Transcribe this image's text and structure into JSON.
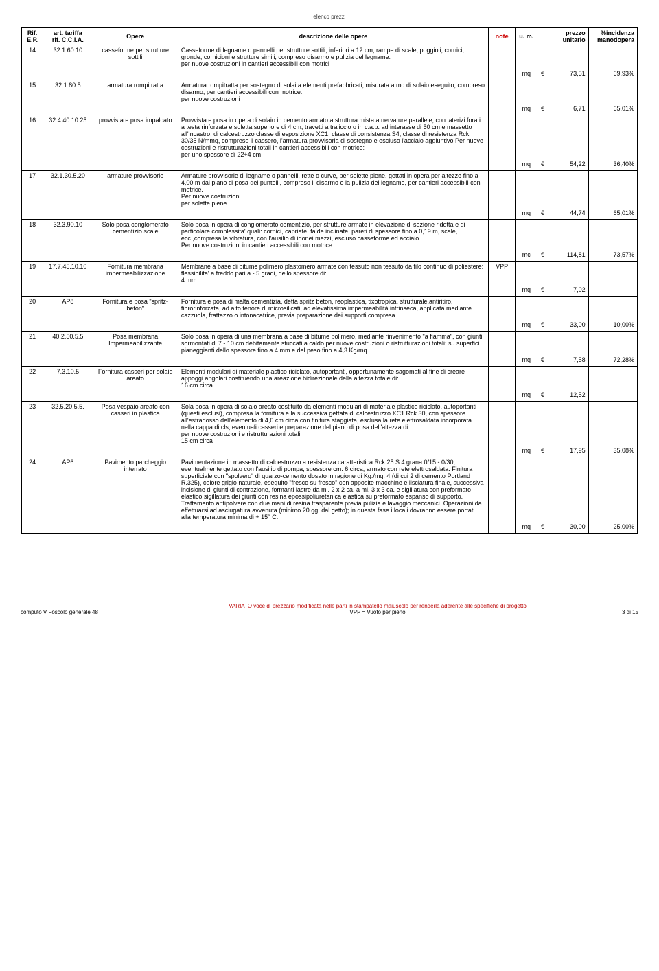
{
  "document_title": "elenco prezzi",
  "headers": {
    "rif": "Rif.\nE.P.",
    "art": "art. tariffa\nrif. C.C.I.A.",
    "opere": "Opere",
    "desc": "descrizione delle opere",
    "note": "note",
    "um": "u. m.",
    "prezzo": "prezzo\nunitario",
    "inc": "%incidenza\nmanodopera"
  },
  "rows": [
    {
      "rif": "14",
      "art": "32.1.60.10",
      "opere": "casseforme per strutture sottili",
      "desc": "Casseforme di legname o pannelli per strutture sottili, inferiori a 12 cm, rampe di scale, poggioli, cornici, gronde, cornicioni e strutture simili, compreso disarmo e pulizia del legname:\nper nuove costruzioni in cantieri accessibili con motrici",
      "note": "",
      "um": "mq",
      "eur": "€",
      "prezzo": "73,51",
      "inc": "69,93%"
    },
    {
      "rif": "15",
      "art": "32.1.80.5",
      "opere": "armatura rompitratta",
      "desc": "Armatura rompitratta per sostegno di solai a elementi prefabbricati, misurata a mq di solaio eseguito, compreso disarmo, per cantieri accessibili con motrice:\nper nuove costruzioni",
      "note": "",
      "um": "mq",
      "eur": "€",
      "prezzo": "6,71",
      "inc": "65,01%"
    },
    {
      "rif": "16",
      "art": "32.4.40.10.25",
      "opere": "provvista e posa impalcato",
      "desc": "Provvista e posa in opera di solaio in cemento armato a struttura mista a nervature parallele, con laterizi forati a testa rinforzata e soletta superiore di 4 cm, travetti a traliccio o in c.a.p. ad interasse di 50 cm e massetto all'incastro, di calcestruzzo classe di esposizione XC1, classe di consistenza S4, classe di resistenza Rck 30/35 N/mmq, compreso il cassero, l'armatura provvisoria di sostegno e escluso l'acciaio aggiuntivo Per nuove costruzioni e ristrutturazioni totali in cantieri accessibili con motrice:\nper uno spessore di 22+4 cm",
      "note": "",
      "um": "mq",
      "eur": "€",
      "prezzo": "54,22",
      "inc": "36,40%"
    },
    {
      "rif": "17",
      "art": "32.1.30.5.20",
      "opere": "armature provvisorie",
      "desc": "Armature provvisorie di legname o pannelli, rette o curve, per solette piene, gettati in opera per altezze fino a 4,00 m dal piano di posa dei puntelli, compreso il disarmo e la pulizia del legname, per cantieri accessibili con motrice.\nPer nuove costruzioni\nper solette piene",
      "note": "",
      "um": "mq",
      "eur": "€",
      "prezzo": "44,74",
      "inc": "65,01%"
    },
    {
      "rif": "18",
      "art": "32.3.90.10",
      "opere": "Solo posa conglomerato cementizio scale",
      "desc": "Solo posa in opera di conglomerato cementizio, per strutture armate in elevazione di sezione ridotta e di particolare complessita' quali: cornici, capriate, falde inclinate, pareti di spessore fino a 0,19 m, scale, ecc.,compresa la vibratura, con l'ausilio di idonei mezzi, escluso casseforme ed acciaio.\nPer nuove costruzioni in cantieri accessibili con motrice",
      "note": "",
      "um": "mc",
      "eur": "€",
      "prezzo": "114,81",
      "inc": "73,57%"
    },
    {
      "rif": "19",
      "art": "17.7.45.10.10",
      "opere": "Fornitura membrana impermeabilizzazione",
      "desc": "Membrane a base di bitume polimero plastomero armate con tessuto non tessuto da filo continuo di poliestere:\nflessibilita' a freddo pari a - 5 gradi, dello spessore di:\n4 mm",
      "note": "VPP",
      "um": "mq",
      "eur": "€",
      "prezzo": "7,02",
      "inc": ""
    },
    {
      "rif": "20",
      "art": "AP8",
      "opere": "Fornitura e posa \"spritz-beton\"",
      "desc": "Fornitura e posa di malta cementizia, detta spritz beton, reoplastica, tixotropica, strutturale,antiritiro, fibrorinforzata, ad alto tenore di microsilicati, ad elevatissima impermeabilità intrinseca, applicata mediante cazzuola, frattazzo o intonacatrice, previa preparazione dei supporti compresa.",
      "note": "",
      "um": "mq",
      "eur": "€",
      "prezzo": "33,00",
      "inc": "10,00%"
    },
    {
      "rif": "21",
      "art": "40.2.50.5.5",
      "opere": "Posa membrana Impermeabilizzante",
      "desc": "Solo posa in opera di una membrana a base di bitume polimero, mediante rinvenimento \"a fiamma\", con giunti sormontati di 7 - 10 cm debitamente stuccati a caldo per nuove costruzioni o ristrutturazioni totali: su superfici pianeggianti dello spessore fino a 4 mm e del peso fino a 4,3 Kg/mq",
      "note": "",
      "um": "mq",
      "eur": "€",
      "prezzo": "7,58",
      "inc": "72,28%"
    },
    {
      "rif": "22",
      "art": "7.3.10.5",
      "opere": "Fornitura casseri per solaio areato",
      "desc": "Elementi modulari di materiale plastico riciclato, autoportanti, opportunamente sagomati al fine di creare appoggi angolari costituendo una areazione bidirezionale della altezza totale di:\n16 cm circa",
      "note": "",
      "um": "mq",
      "eur": "€",
      "prezzo": "12,52",
      "inc": ""
    },
    {
      "rif": "23",
      "art": "32.5.20.5.5.",
      "opere": "Posa vespaio areato con casseri in plastica",
      "desc": "Sola posa in opera di solaio areato costituito da elementi modulari di materiale plastico riciclato, autoportanti (questi esclusi), compresa la fornitura e la successiva gettata di calcestruzzo XC1 Rck 30, con spessore all'estradosso dell'elemento di 4,0 cm circa,con finitura staggiata, esclusa la rete elettrosaldata incorporata nella cappa di cls, eventuali casseri e preparazione del piano di posa dell'altezza di:\nper nuove costruzioni e ristrutturazioni totali\n15 cm circa",
      "note": "",
      "um": "mq",
      "eur": "€",
      "prezzo": "17,95",
      "inc": "35,08%"
    },
    {
      "rif": "24",
      "art": "AP6",
      "opere": "Pavimento parcheggio interrato",
      "desc": "Pavimentazione in massetto di calcestruzzo a resistenza caratteristica Rck 25 S 4 grana 0/15 - 0/30, eventualmente gettato con l'ausilio di pompa, spessore cm. 6 circa, armato con rete elettrosaldata. Finitura superficiale con \"spolvero\" di quarzo-cemento dosato in ragione di Kg./mq. 4 (di cui 2 di cemento Portland R.325), colore grigio naturale, eseguito \"fresco su fresco\" con apposite macchine e lisciatura finale, successiva incisione di giunti di contrazione, formanti lastre da ml. 2 x 2 ca. a ml. 3 x 3 ca. e sigillatura con preformato elastico sigillatura dei giunti con resina epossipoliuretanica elastica su preformato espanso di supporto. Trattamento antipolvere con due mani di resina trasparente previa pulizia e lavaggio meccanici. Operazioni da effettuarsi ad asciugatura avvenuta (minimo 20 gg. dal getto); in questa fase i locali dovranno essere portati alla temperatura minima di + 15° C.",
      "note": "",
      "um": "mq",
      "eur": "€",
      "prezzo": "30,00",
      "inc": "25,00%"
    }
  ],
  "footer": {
    "left": "computo V Foscolo generale 48",
    "center_red": "VARIATO voce di prezzario modificata nelle parti in stampatello maiuscolo per renderla aderente alle specifiche di progetto",
    "center_black": "VPP = Vuoto per pieno",
    "right": "3 di 15"
  }
}
